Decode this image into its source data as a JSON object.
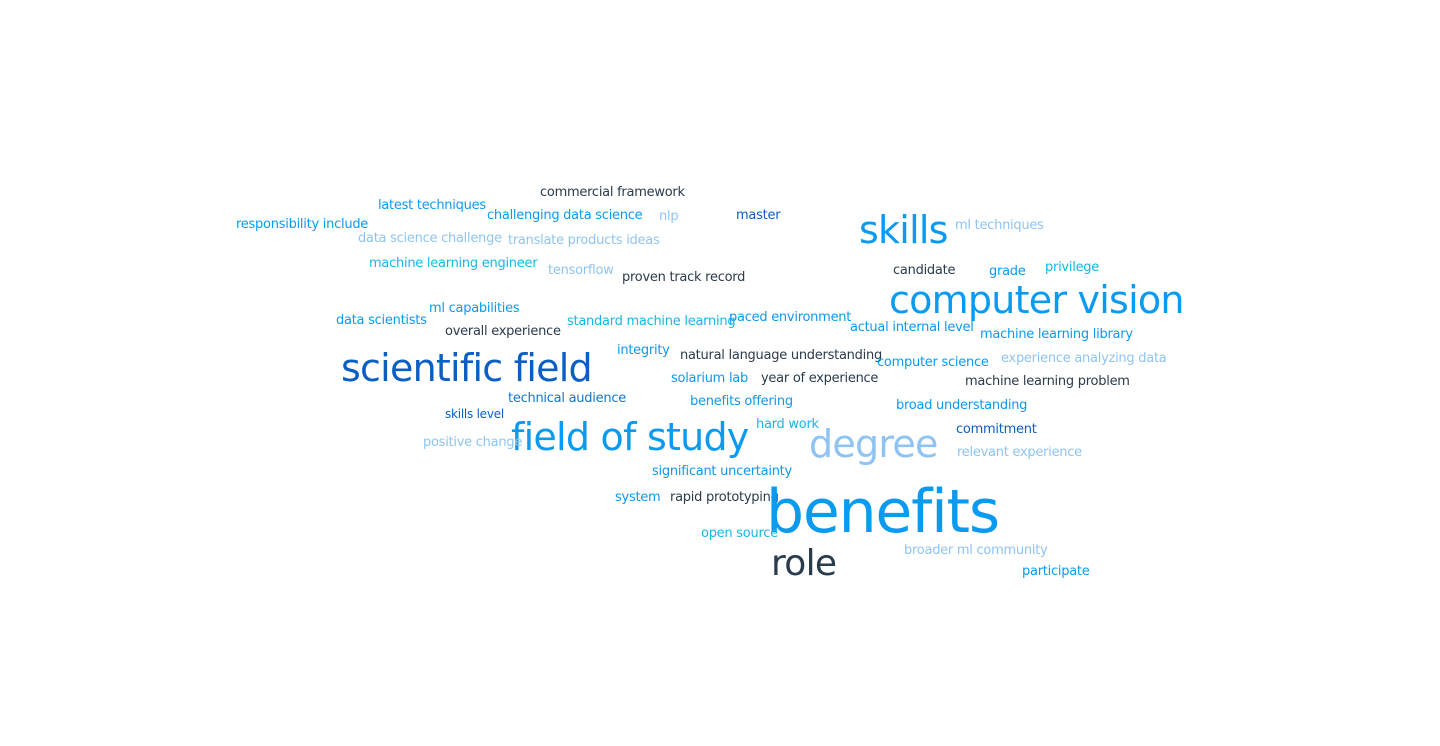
{
  "colors": {
    "dark": "#2a3b4c",
    "blue": "#0a9bf0",
    "mid_blue": "#0d78d4",
    "deep_blue": "#0b5fc4",
    "light_blue": "#8fc4f2",
    "cyan": "#14b8e6"
  },
  "words": [
    {
      "id": "w1",
      "text": "commercial framework",
      "tone": "dark"
    },
    {
      "id": "w2",
      "text": "latest techniques",
      "tone": "blue"
    },
    {
      "id": "w3",
      "text": "challenging data science",
      "tone": "blue"
    },
    {
      "id": "w4",
      "text": "nlp",
      "tone": "light_blue"
    },
    {
      "id": "w5",
      "text": "master",
      "tone": "deep_blue"
    },
    {
      "id": "w6",
      "text": "skills",
      "tone": "blue"
    },
    {
      "id": "w7",
      "text": "ml techniques",
      "tone": "light_blue"
    },
    {
      "id": "w8",
      "text": "responsibility include",
      "tone": "blue"
    },
    {
      "id": "w9",
      "text": "data science challenge",
      "tone": "light_blue"
    },
    {
      "id": "w10",
      "text": "translate products ideas",
      "tone": "light_blue"
    },
    {
      "id": "w11",
      "text": "machine learning engineer",
      "tone": "cyan"
    },
    {
      "id": "w12",
      "text": "tensorflow",
      "tone": "light_blue"
    },
    {
      "id": "w13",
      "text": "proven track record",
      "tone": "dark"
    },
    {
      "id": "w14",
      "text": "candidate",
      "tone": "dark"
    },
    {
      "id": "w15",
      "text": "grade",
      "tone": "blue"
    },
    {
      "id": "w16",
      "text": "privilege",
      "tone": "cyan"
    },
    {
      "id": "w17",
      "text": "computer vision",
      "tone": "blue"
    },
    {
      "id": "w18",
      "text": "ml capabilities",
      "tone": "blue"
    },
    {
      "id": "w19",
      "text": "data scientists",
      "tone": "blue"
    },
    {
      "id": "w20",
      "text": "overall experience",
      "tone": "dark"
    },
    {
      "id": "w21",
      "text": "standard machine learning",
      "tone": "cyan"
    },
    {
      "id": "w22",
      "text": "paced environment",
      "tone": "blue"
    },
    {
      "id": "w23",
      "text": "actual internal level",
      "tone": "blue"
    },
    {
      "id": "w24",
      "text": "machine learning library",
      "tone": "blue"
    },
    {
      "id": "w25",
      "text": "scientific field",
      "tone": "deep_blue"
    },
    {
      "id": "w26",
      "text": "integrity",
      "tone": "blue"
    },
    {
      "id": "w27",
      "text": "natural language understanding",
      "tone": "dark"
    },
    {
      "id": "w28",
      "text": "computer science",
      "tone": "blue"
    },
    {
      "id": "w29",
      "text": "experience analyzing data",
      "tone": "light_blue"
    },
    {
      "id": "w30",
      "text": "solarium lab",
      "tone": "blue"
    },
    {
      "id": "w31",
      "text": "year of experience",
      "tone": "dark"
    },
    {
      "id": "w32",
      "text": "machine learning problem",
      "tone": "dark"
    },
    {
      "id": "w33",
      "text": "technical audience",
      "tone": "mid_blue"
    },
    {
      "id": "w34",
      "text": "benefits offering",
      "tone": "blue"
    },
    {
      "id": "w35",
      "text": "broad understanding",
      "tone": "blue"
    },
    {
      "id": "w36",
      "text": "skills level",
      "tone": "deep_blue"
    },
    {
      "id": "w37",
      "text": "hard work",
      "tone": "cyan"
    },
    {
      "id": "w38",
      "text": "field of study",
      "tone": "blue"
    },
    {
      "id": "w39",
      "text": "commitment",
      "tone": "deep_blue"
    },
    {
      "id": "w40",
      "text": "positive change",
      "tone": "light_blue"
    },
    {
      "id": "w41",
      "text": "degree",
      "tone": "light_blue"
    },
    {
      "id": "w42",
      "text": "relevant experience",
      "tone": "light_blue"
    },
    {
      "id": "w43",
      "text": "significant uncertainty",
      "tone": "blue"
    },
    {
      "id": "w44",
      "text": "system",
      "tone": "blue"
    },
    {
      "id": "w45",
      "text": "rapid prototyping",
      "tone": "dark"
    },
    {
      "id": "w46",
      "text": "benefits",
      "tone": "blue"
    },
    {
      "id": "w47",
      "text": "open source",
      "tone": "cyan"
    },
    {
      "id": "w48",
      "text": "broader ml community",
      "tone": "light_blue"
    },
    {
      "id": "w49",
      "text": "role",
      "tone": "dark"
    },
    {
      "id": "w50",
      "text": "participate",
      "tone": "blue"
    }
  ]
}
